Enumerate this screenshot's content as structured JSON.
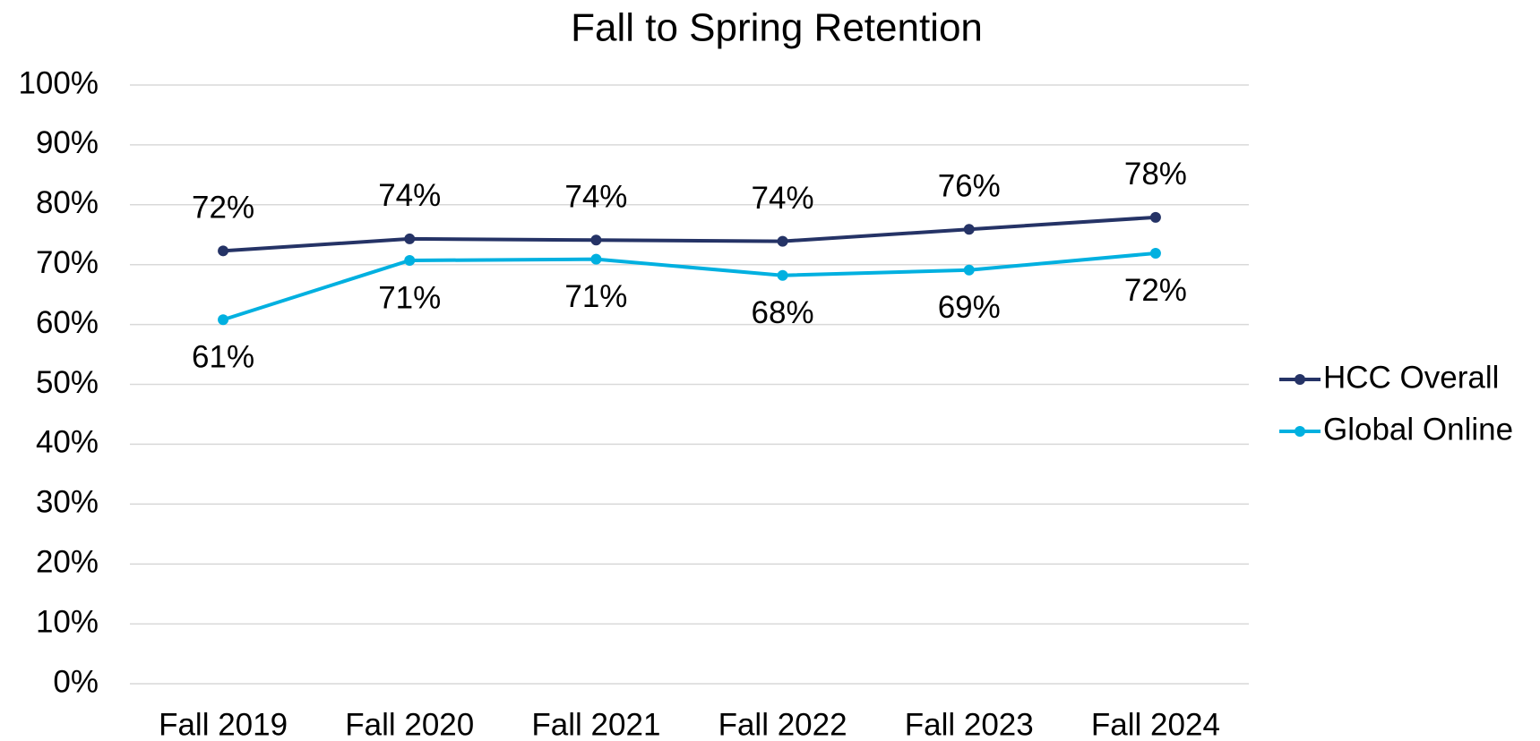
{
  "chart_data": {
    "type": "line",
    "title": "Fall to Spring Retention",
    "categories": [
      "Fall 2019",
      "Fall 2020",
      "Fall 2021",
      "Fall 2022",
      "Fall 2023",
      "Fall 2024"
    ],
    "series": [
      {
        "name": "HCC Overall",
        "color": "#253366",
        "values": [
          72.3,
          74.3,
          74.1,
          73.9,
          75.9,
          77.9
        ],
        "value_labels": [
          "72%",
          "74%",
          "74%",
          "74%",
          "76%",
          "78%"
        ]
      },
      {
        "name": "Global Online",
        "color": "#00b0e0",
        "values": [
          60.8,
          70.7,
          70.9,
          68.2,
          69.1,
          71.9
        ],
        "value_labels": [
          "61%",
          "71%",
          "71%",
          "68%",
          "69%",
          "72%"
        ]
      }
    ],
    "ylim": [
      0,
      100
    ],
    "yticks": [
      {
        "value": 0,
        "label": "0%"
      },
      {
        "value": 10,
        "label": "10%"
      },
      {
        "value": 20,
        "label": "20%"
      },
      {
        "value": 30,
        "label": "30%"
      },
      {
        "value": 40,
        "label": "40%"
      },
      {
        "value": 50,
        "label": "50%"
      },
      {
        "value": 60,
        "label": "60%"
      },
      {
        "value": 70,
        "label": "70%"
      },
      {
        "value": 80,
        "label": "80%"
      },
      {
        "value": 90,
        "label": "90%"
      },
      {
        "value": 100,
        "label": "100%"
      }
    ],
    "grid": true,
    "legend": "right"
  }
}
